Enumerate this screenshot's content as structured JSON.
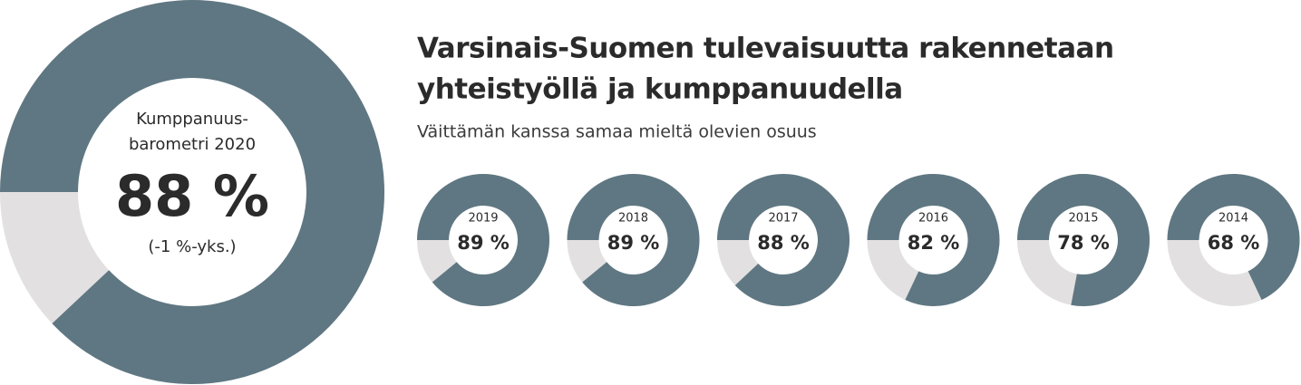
{
  "chart_data": {
    "type": "donut",
    "title": [
      "Varsinais-Suomen tulevaisuutta rakennetaan",
      "yhteistyöllä ja kumppanuudella"
    ],
    "subtitle": "Väittämän kanssa samaa mieltä olevien osuus",
    "color": "#5f7782",
    "background_color": "#e2e0e1",
    "highlight": {
      "label": [
        "Kumppanuus-",
        "barometri 2020"
      ],
      "value": 88,
      "value_label": "88 %",
      "change": "(-1 %-yks.)"
    },
    "categories": [
      "2019",
      "2018",
      "2017",
      "2016",
      "2015",
      "2014"
    ],
    "values": [
      89,
      89,
      88,
      82,
      78,
      68
    ],
    "value_labels": [
      "89 %",
      "89 %",
      "88 %",
      "82 %",
      "78 %",
      "68 %"
    ]
  }
}
